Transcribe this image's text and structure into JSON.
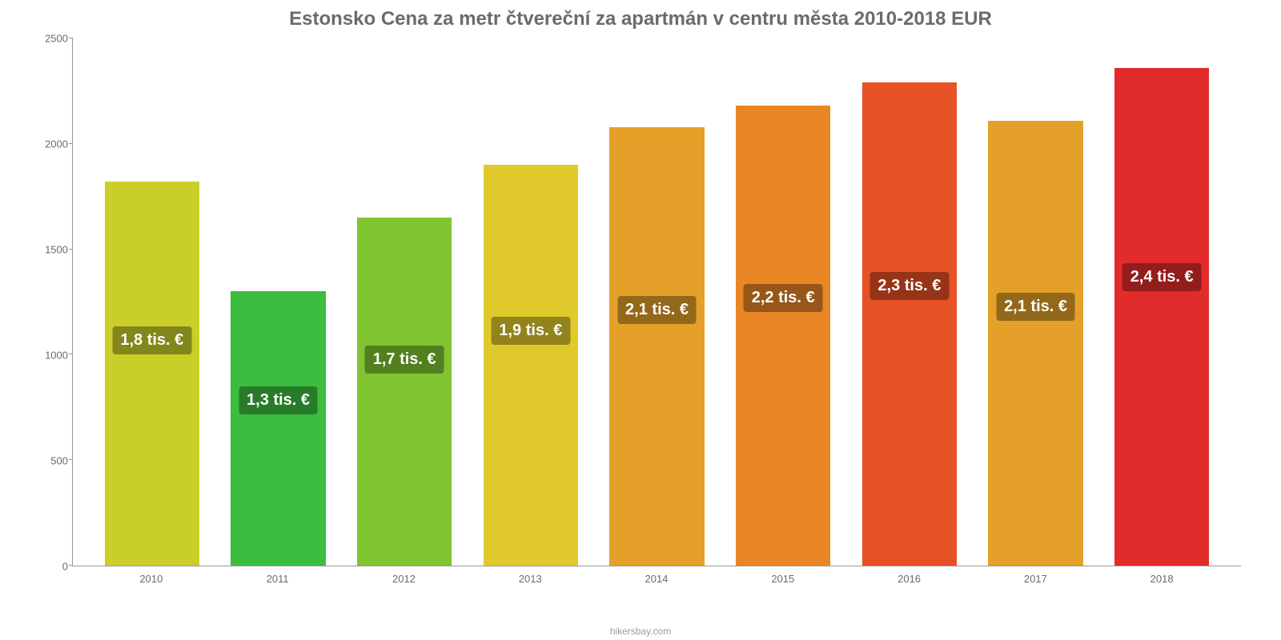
{
  "chart": {
    "type": "bar",
    "title": "Estonsko Cena za metr čtvereční za apartmán v centru města 2010-2018 EUR",
    "title_color": "#6b6b6b",
    "title_fontsize": 24,
    "background_color": "#ffffff",
    "categories": [
      "2010",
      "2011",
      "2012",
      "2013",
      "2014",
      "2015",
      "2016",
      "2017",
      "2018"
    ],
    "values": [
      1820,
      1300,
      1650,
      1900,
      2080,
      2180,
      2290,
      2110,
      2360
    ],
    "bar_colors": [
      "#c9ce29",
      "#3cbd3f",
      "#80c431",
      "#e0ca2b",
      "#e4a028",
      "#e88626",
      "#e65126",
      "#e4a028",
      "#e22b2b"
    ],
    "bar_labels": [
      "1,8 tis. €",
      "1,3 tis. €",
      "1,7 tis. €",
      "1,9 tis. €",
      "2,1 tis. €",
      "2,2 tis. €",
      "2,3 tis. €",
      "2,1 tis. €",
      "2,4 tis. €"
    ],
    "bar_label_fontsize": 20,
    "bar_label_color": "#ffffff",
    "ylim": [
      0,
      2500
    ],
    "ytick_step": 500,
    "yticks": [
      0,
      500,
      1000,
      1500,
      2000,
      2500
    ],
    "axis_label_color": "#6b6b6b",
    "axis_label_fontsize": 13,
    "bar_width": 0.75,
    "attribution": "hikersbay.com"
  }
}
